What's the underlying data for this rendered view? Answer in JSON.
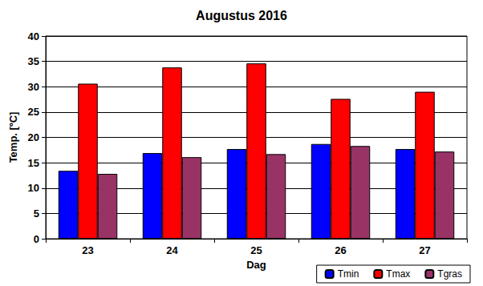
{
  "chart_data": {
    "type": "bar",
    "title": "Augustus 2016",
    "x_label": "Dag",
    "y_label": "Temp. [ºC]",
    "categories": [
      "23",
      "24",
      "25",
      "26",
      "27"
    ],
    "series": [
      {
        "name": "Tmin",
        "color": "#0000ff",
        "values": [
          13.4,
          16.9,
          17.7,
          18.7,
          17.7
        ]
      },
      {
        "name": "Tmax",
        "color": "#ff0000",
        "values": [
          30.6,
          33.8,
          34.6,
          27.6,
          29.0
        ]
      },
      {
        "name": "Tgras",
        "color": "#993366",
        "values": [
          12.8,
          16.1,
          16.7,
          18.3,
          17.2
        ]
      }
    ],
    "ylim": [
      0,
      40
    ],
    "yticks": [
      0,
      5,
      10,
      15,
      20,
      25,
      30,
      35,
      40
    ],
    "grid": true,
    "legend": "bottom right"
  }
}
